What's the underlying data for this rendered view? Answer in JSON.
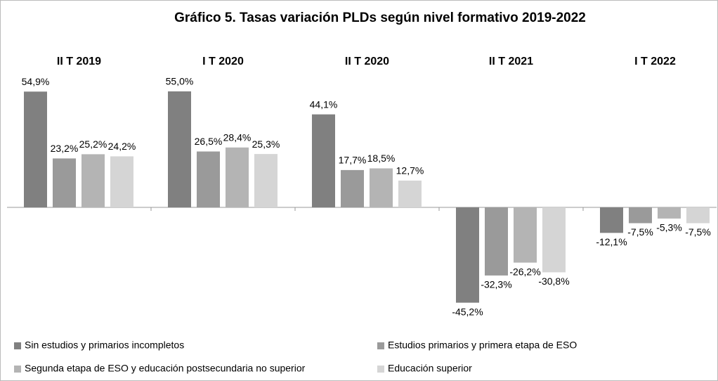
{
  "chart_data": {
    "type": "bar",
    "title": "Gráfico 5. Tasas variación PLDs según nivel formativo 2019-2022",
    "categories": [
      "II T 2019",
      "I T 2020",
      "II T 2020",
      "II T 2021",
      "I T 2022"
    ],
    "series": [
      {
        "name": "Sin estudios y  primarios incompletos",
        "color": "#808080",
        "values": [
          54.9,
          55.0,
          44.1,
          -45.2,
          -12.1
        ],
        "value_labels": [
          "54,9%",
          "55,0%",
          "44,1%",
          "-45,2%",
          "-12,1%"
        ]
      },
      {
        "name": "Estudios primarios y primera etapa de ESO",
        "color": "#9a9a9a",
        "values": [
          23.2,
          26.5,
          17.7,
          -32.3,
          -7.5
        ],
        "value_labels": [
          "23,2%",
          "26,5%",
          "17,7%",
          "-32,3%",
          "-7,5%"
        ]
      },
      {
        "name": "Segunda etapa de ESO y educación postsecundaria no superior",
        "color": "#b4b4b4",
        "values": [
          25.2,
          28.4,
          18.5,
          -26.2,
          -5.3
        ],
        "value_labels": [
          "25,2%",
          "28,4%",
          "18,5%",
          "-26,2%",
          "-5,3%"
        ]
      },
      {
        "name": "Educación superior",
        "color": "#d5d5d5",
        "values": [
          24.2,
          25.3,
          12.7,
          -30.8,
          -7.5
        ],
        "value_labels": [
          "24,2%",
          "25,3%",
          "12,7%",
          "-30,8%",
          "-7,5%"
        ]
      }
    ],
    "legend": "bottom"
  }
}
